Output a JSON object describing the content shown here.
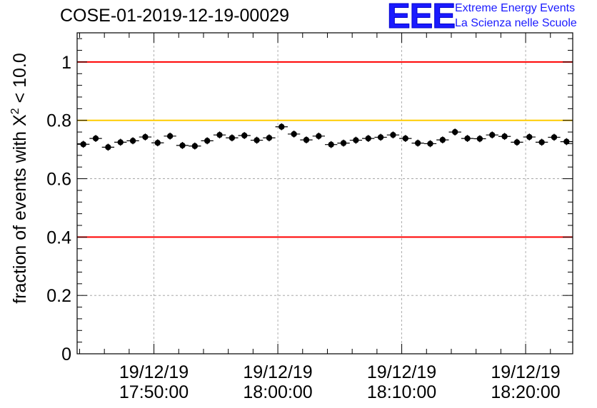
{
  "plot": {
    "title": "COSE-01-2019-12-19-00029"
  },
  "logo": {
    "mark": "EEE",
    "line1": "Extreme Energy Events",
    "line2": "La Scienza nelle Scuole",
    "color": "#1a1aff"
  },
  "chart_data": {
    "type": "scatter",
    "title": "COSE-01-2019-12-19-00029",
    "xlabel": "",
    "ylabel_prefix": "fraction of events with ",
    "ylabel_symbol": "X",
    "ylabel_superscript": "2",
    "ylabel_suffix": " < 10.0",
    "ylim": [
      0,
      1.1
    ],
    "grid": true,
    "x_unit": "minutes after 19/12/19 17:50:00",
    "xlim": [
      -6.2,
      33.8
    ],
    "yticks": [
      {
        "value": 0,
        "label": "0"
      },
      {
        "value": 0.2,
        "label": "0.2"
      },
      {
        "value": 0.4,
        "label": "0.4"
      },
      {
        "value": 0.6,
        "label": "0.6"
      },
      {
        "value": 0.8,
        "label": "0.8"
      },
      {
        "value": 1,
        "label": "1"
      }
    ],
    "xticks": [
      {
        "value": 0,
        "date": "19/12/19",
        "time": "17:50:00"
      },
      {
        "value": 10,
        "date": "19/12/19",
        "time": "18:00:00"
      },
      {
        "value": 20,
        "date": "19/12/19",
        "time": "18:10:00"
      },
      {
        "value": 30,
        "date": "19/12/19",
        "time": "18:20:00"
      }
    ],
    "reference_lines": [
      {
        "name": "upper-red-line",
        "y": 1.0,
        "color": "#ff0000"
      },
      {
        "name": "warning-yellow-line",
        "y": 0.8,
        "color": "#ffcc00"
      },
      {
        "name": "lower-red-line",
        "y": 0.4,
        "color": "#ff0000"
      }
    ],
    "series": [
      {
        "name": "fraction",
        "marker_color": "#000000",
        "bin_width": 1.0,
        "x": [
          -5.7,
          -4.7,
          -3.7,
          -2.7,
          -1.7,
          -0.7,
          0.3,
          1.3,
          2.3,
          3.3,
          4.3,
          5.3,
          6.3,
          7.3,
          8.3,
          9.3,
          10.3,
          11.3,
          12.3,
          13.3,
          14.3,
          15.3,
          16.3,
          17.3,
          18.3,
          19.3,
          20.3,
          21.3,
          22.3,
          23.3,
          24.3,
          25.3,
          26.3,
          27.3,
          28.3,
          29.3,
          30.3,
          31.3,
          32.3,
          33.3
        ],
        "y": [
          0.718,
          0.738,
          0.708,
          0.725,
          0.73,
          0.743,
          0.723,
          0.746,
          0.714,
          0.712,
          0.73,
          0.75,
          0.74,
          0.748,
          0.732,
          0.74,
          0.778,
          0.753,
          0.733,
          0.746,
          0.717,
          0.722,
          0.732,
          0.738,
          0.742,
          0.75,
          0.738,
          0.722,
          0.72,
          0.733,
          0.76,
          0.738,
          0.737,
          0.75,
          0.745,
          0.725,
          0.743,
          0.725,
          0.742,
          0.727
        ],
        "yerr": 0.012
      }
    ]
  }
}
